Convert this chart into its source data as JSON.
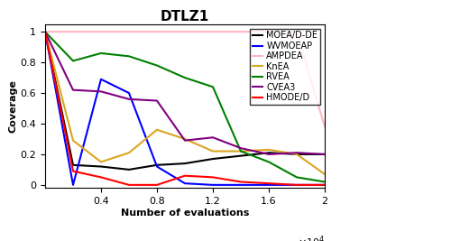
{
  "title": "DTLZ1",
  "xlabel": "Number of evaluations",
  "ylabel": "Coverage",
  "xlim": [
    0,
    20000
  ],
  "ylim": [
    -0.02,
    1.05
  ],
  "xticks": [
    4000,
    8000,
    12000,
    16000,
    20000
  ],
  "xticklabels": [
    "0.4",
    "0.8",
    "1.2",
    "1.6",
    "2"
  ],
  "yticks": [
    0,
    0.2,
    0.4,
    0.6,
    0.8,
    1.0
  ],
  "yticklabels": [
    "0",
    "0.2",
    "0.4",
    "0.6",
    "0.8",
    "1"
  ],
  "series": {
    "MOEA/D-DE": {
      "color": "#000000",
      "x": [
        0,
        2000,
        4000,
        6000,
        8000,
        10000,
        12000,
        14000,
        16000,
        18000,
        20000
      ],
      "y": [
        1.0,
        0.13,
        0.12,
        0.1,
        0.13,
        0.14,
        0.17,
        0.19,
        0.21,
        0.2,
        0.2
      ]
    },
    "WVMOEAP": {
      "color": "#0000FF",
      "x": [
        0,
        2000,
        4000,
        6000,
        8000,
        10000,
        12000,
        14000,
        16000,
        18000,
        20000
      ],
      "y": [
        1.0,
        0.0,
        0.69,
        0.6,
        0.12,
        0.01,
        0.0,
        0.0,
        0.0,
        0.0,
        0.0
      ]
    },
    "AMPDEA": {
      "color": "#FFB6C1",
      "x": [
        0,
        2000,
        4000,
        6000,
        8000,
        10000,
        12000,
        14000,
        16000,
        18000,
        20000
      ],
      "y": [
        1.0,
        1.0,
        1.0,
        1.0,
        1.0,
        1.0,
        1.0,
        1.0,
        1.0,
        1.0,
        0.38
      ]
    },
    "KnEA": {
      "color": "#DAA520",
      "x": [
        0,
        2000,
        4000,
        6000,
        8000,
        10000,
        12000,
        14000,
        16000,
        18000,
        20000
      ],
      "y": [
        1.0,
        0.29,
        0.15,
        0.21,
        0.36,
        0.3,
        0.22,
        0.22,
        0.23,
        0.2,
        0.07
      ]
    },
    "RVEA": {
      "color": "#008000",
      "x": [
        0,
        2000,
        4000,
        6000,
        8000,
        10000,
        12000,
        14000,
        16000,
        18000,
        20000
      ],
      "y": [
        1.0,
        0.81,
        0.86,
        0.84,
        0.78,
        0.7,
        0.64,
        0.22,
        0.15,
        0.05,
        0.02
      ]
    },
    "CVEA3": {
      "color": "#800080",
      "x": [
        0,
        2000,
        4000,
        6000,
        8000,
        10000,
        12000,
        14000,
        16000,
        18000,
        20000
      ],
      "y": [
        1.0,
        0.62,
        0.61,
        0.56,
        0.55,
        0.29,
        0.31,
        0.24,
        0.2,
        0.21,
        0.2
      ]
    },
    "HMODE/D": {
      "color": "#FF0000",
      "x": [
        0,
        2000,
        4000,
        6000,
        8000,
        10000,
        12000,
        14000,
        16000,
        18000,
        20000
      ],
      "y": [
        1.0,
        0.09,
        0.05,
        0.0,
        0.0,
        0.06,
        0.05,
        0.02,
        0.01,
        0.0,
        0.0
      ]
    }
  },
  "figsize": [
    5.0,
    2.67
  ],
  "dpi": 100,
  "title_fontsize": 11,
  "label_fontsize": 8,
  "tick_fontsize": 8,
  "legend_fontsize": 7,
  "linewidth": 1.5
}
